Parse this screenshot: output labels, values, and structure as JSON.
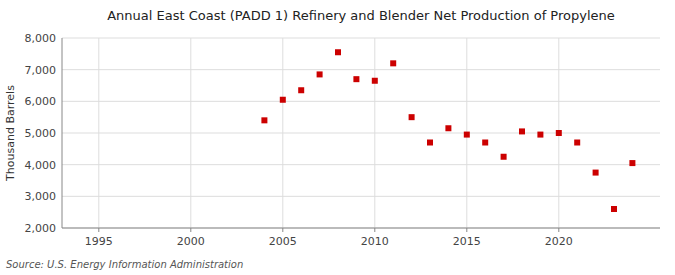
{
  "chart_data": {
    "type": "scatter",
    "title": "Annual East Coast (PADD 1) Refinery and Blender Net Production of Propylene",
    "y_label": "Thousand Barrels",
    "source": "Source: U.S. Energy Information Administration",
    "color": "#cc0000",
    "marker": "square",
    "grid": true,
    "xlim": [
      1993,
      2025.5
    ],
    "ylim": [
      2000,
      8000
    ],
    "xticks": [
      1995,
      2000,
      2005,
      2010,
      2015,
      2020
    ],
    "yticks": [
      {
        "value": 2000,
        "label": "2,000"
      },
      {
        "value": 3000,
        "label": "3,000"
      },
      {
        "value": 4000,
        "label": "4,000"
      },
      {
        "value": 5000,
        "label": "5,000"
      },
      {
        "value": 6000,
        "label": "6,000"
      },
      {
        "value": 7000,
        "label": "7,000"
      },
      {
        "value": 8000,
        "label": "8,000"
      }
    ],
    "x": [
      2004,
      2005,
      2006,
      2007,
      2008,
      2009,
      2010,
      2011,
      2012,
      2013,
      2014,
      2015,
      2016,
      2017,
      2018,
      2019,
      2020,
      2021,
      2022,
      2023,
      2024
    ],
    "values": [
      5400,
      6050,
      6350,
      6850,
      7550,
      6700,
      6650,
      7200,
      5500,
      4700,
      5150,
      4950,
      4700,
      4250,
      5050,
      4950,
      5000,
      4700,
      3750,
      2600,
      4050
    ]
  }
}
